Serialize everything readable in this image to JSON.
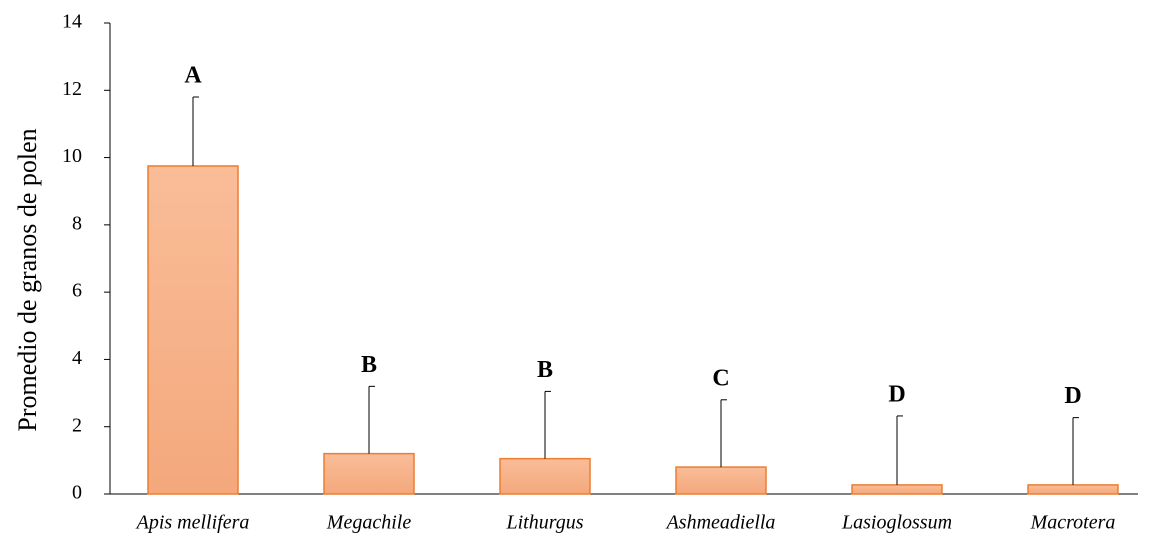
{
  "chart_data": {
    "type": "bar",
    "ylabel": "Promedio de granos de polen",
    "categories": [
      "Apis mellifera",
      "Megachile",
      "Lithurgus",
      "Ashmeadiella",
      "Lasioglossum",
      "Macrotera"
    ],
    "values": [
      9.75,
      1.2,
      1.05,
      0.8,
      0.27,
      0.27
    ],
    "errors": [
      2.05,
      2.0,
      2.0,
      2.0,
      2.05,
      2.0
    ],
    "annotations": [
      "A",
      "B",
      "B",
      "C",
      "D",
      "D"
    ],
    "color": "#f4a87c",
    "edgecolor": "#ed7d31",
    "ylim": [
      0,
      14
    ],
    "yticks": [
      0,
      2,
      4,
      6,
      8,
      10,
      12,
      14
    ],
    "grid": false
  }
}
